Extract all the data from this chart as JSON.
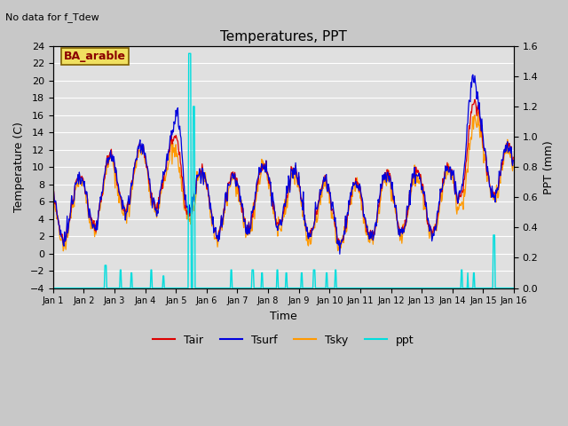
{
  "title": "Temperatures, PPT",
  "xlabel": "Time",
  "ylabel_left": "Temperature (C)",
  "ylabel_right": "PPT (mm)",
  "ylim_left": [
    -4,
    24
  ],
  "ylim_right": [
    0.0,
    1.6
  ],
  "yticks_left": [
    -4,
    -2,
    0,
    2,
    4,
    6,
    8,
    10,
    12,
    14,
    16,
    18,
    20,
    22,
    24
  ],
  "yticks_right": [
    0.0,
    0.2,
    0.4,
    0.6,
    0.8,
    1.0,
    1.2,
    1.4,
    1.6
  ],
  "annotation_nodatatext": "No data for f_Tdew",
  "box_label": "BA_arable",
  "fig_facecolor": "#c8c8c8",
  "plot_facecolor": "#e0e0e0",
  "colors": {
    "Tair": "#dd0000",
    "Tsurf": "#0000dd",
    "Tsky": "#ff9900",
    "ppt": "#00dddd"
  },
  "n_days": 15,
  "pts_per_day": 48
}
